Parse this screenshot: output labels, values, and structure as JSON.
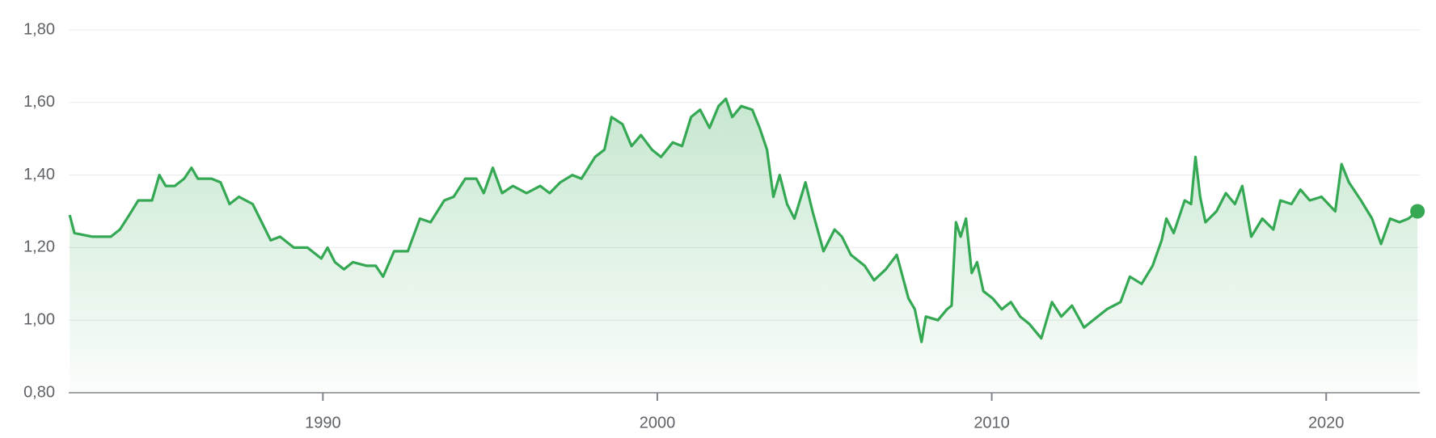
{
  "chart_data": {
    "type": "line",
    "color": "#34a853",
    "grid": true,
    "xlim": [
      1982.4,
      2022.8
    ],
    "xticks": [
      1990,
      2000,
      2010,
      2020
    ],
    "ylim": [
      0.8,
      1.8
    ],
    "yticks": [
      {
        "value": 0.8,
        "label": "0,80"
      },
      {
        "value": 1.0,
        "label": "1,00"
      },
      {
        "value": 1.2,
        "label": "1,20"
      },
      {
        "value": 1.4,
        "label": "1,40"
      },
      {
        "value": 1.6,
        "label": "1,60"
      },
      {
        "value": 1.8,
        "label": "1,80"
      }
    ],
    "x": [
      1982.43,
      1982.57,
      1983.11,
      1983.66,
      1983.93,
      1984.21,
      1984.48,
      1984.89,
      1985.11,
      1985.3,
      1985.57,
      1985.85,
      1986.07,
      1986.26,
      1986.67,
      1986.94,
      1987.21,
      1987.49,
      1987.9,
      1988.17,
      1988.44,
      1988.72,
      1989.13,
      1989.54,
      1989.95,
      1990.14,
      1990.36,
      1990.63,
      1990.9,
      1991.31,
      1991.58,
      1991.8,
      1992.13,
      1992.54,
      1992.9,
      1993.22,
      1993.63,
      1993.91,
      1994.26,
      1994.59,
      1994.81,
      1995.08,
      1995.36,
      1995.68,
      1996.09,
      1996.5,
      1996.78,
      1997.1,
      1997.46,
      1997.73,
      1998.14,
      1998.42,
      1998.63,
      1998.96,
      1999.23,
      1999.51,
      1999.84,
      2000.11,
      2000.46,
      2000.74,
      2001.01,
      2001.28,
      2001.56,
      2001.83,
      2002.05,
      2002.24,
      2002.51,
      2002.84,
      2003.06,
      2003.28,
      2003.47,
      2003.66,
      2003.88,
      2004.1,
      2004.43,
      2004.64,
      2004.97,
      2005.3,
      2005.52,
      2005.79,
      2006.2,
      2006.48,
      2006.83,
      2007.16,
      2007.51,
      2007.7,
      2007.9,
      2008.03,
      2008.39,
      2008.66,
      2008.8,
      2008.93,
      2009.07,
      2009.23,
      2009.4,
      2009.56,
      2009.75,
      2010.03,
      2010.3,
      2010.57,
      2010.85,
      2011.12,
      2011.48,
      2011.8,
      2012.08,
      2012.4,
      2012.76,
      2013.03,
      2013.44,
      2013.85,
      2014.13,
      2014.48,
      2014.81,
      2015.08,
      2015.22,
      2015.44,
      2015.77,
      2015.96,
      2016.09,
      2016.23,
      2016.39,
      2016.72,
      2017.0,
      2017.27,
      2017.49,
      2017.76,
      2018.09,
      2018.42,
      2018.63,
      2018.96,
      2019.23,
      2019.51,
      2019.86,
      2020.27,
      2020.46,
      2020.68,
      2021.04,
      2021.37,
      2021.64,
      2021.91,
      2022.19,
      2022.46,
      2022.73
    ],
    "values": [
      1.29,
      1.24,
      1.23,
      1.23,
      1.25,
      1.29,
      1.33,
      1.33,
      1.4,
      1.37,
      1.37,
      1.39,
      1.42,
      1.39,
      1.39,
      1.38,
      1.32,
      1.34,
      1.32,
      1.27,
      1.22,
      1.23,
      1.2,
      1.2,
      1.17,
      1.2,
      1.16,
      1.14,
      1.16,
      1.15,
      1.15,
      1.12,
      1.19,
      1.19,
      1.28,
      1.27,
      1.33,
      1.34,
      1.39,
      1.39,
      1.35,
      1.42,
      1.35,
      1.37,
      1.35,
      1.37,
      1.35,
      1.38,
      1.4,
      1.39,
      1.45,
      1.47,
      1.56,
      1.54,
      1.48,
      1.51,
      1.47,
      1.45,
      1.49,
      1.48,
      1.56,
      1.58,
      1.53,
      1.59,
      1.61,
      1.56,
      1.59,
      1.58,
      1.53,
      1.47,
      1.34,
      1.4,
      1.32,
      1.28,
      1.38,
      1.3,
      1.19,
      1.25,
      1.23,
      1.18,
      1.15,
      1.11,
      1.14,
      1.18,
      1.06,
      1.03,
      0.94,
      1.01,
      1.0,
      1.03,
      1.04,
      1.27,
      1.23,
      1.28,
      1.13,
      1.16,
      1.08,
      1.06,
      1.03,
      1.05,
      1.01,
      0.99,
      0.95,
      1.05,
      1.01,
      1.04,
      0.98,
      1.0,
      1.03,
      1.05,
      1.12,
      1.1,
      1.15,
      1.22,
      1.28,
      1.24,
      1.33,
      1.32,
      1.45,
      1.34,
      1.27,
      1.3,
      1.35,
      1.32,
      1.37,
      1.23,
      1.28,
      1.25,
      1.33,
      1.32,
      1.36,
      1.33,
      1.34,
      1.3,
      1.43,
      1.38,
      1.33,
      1.28,
      1.21,
      1.28,
      1.27,
      1.28,
      1.3
    ]
  }
}
